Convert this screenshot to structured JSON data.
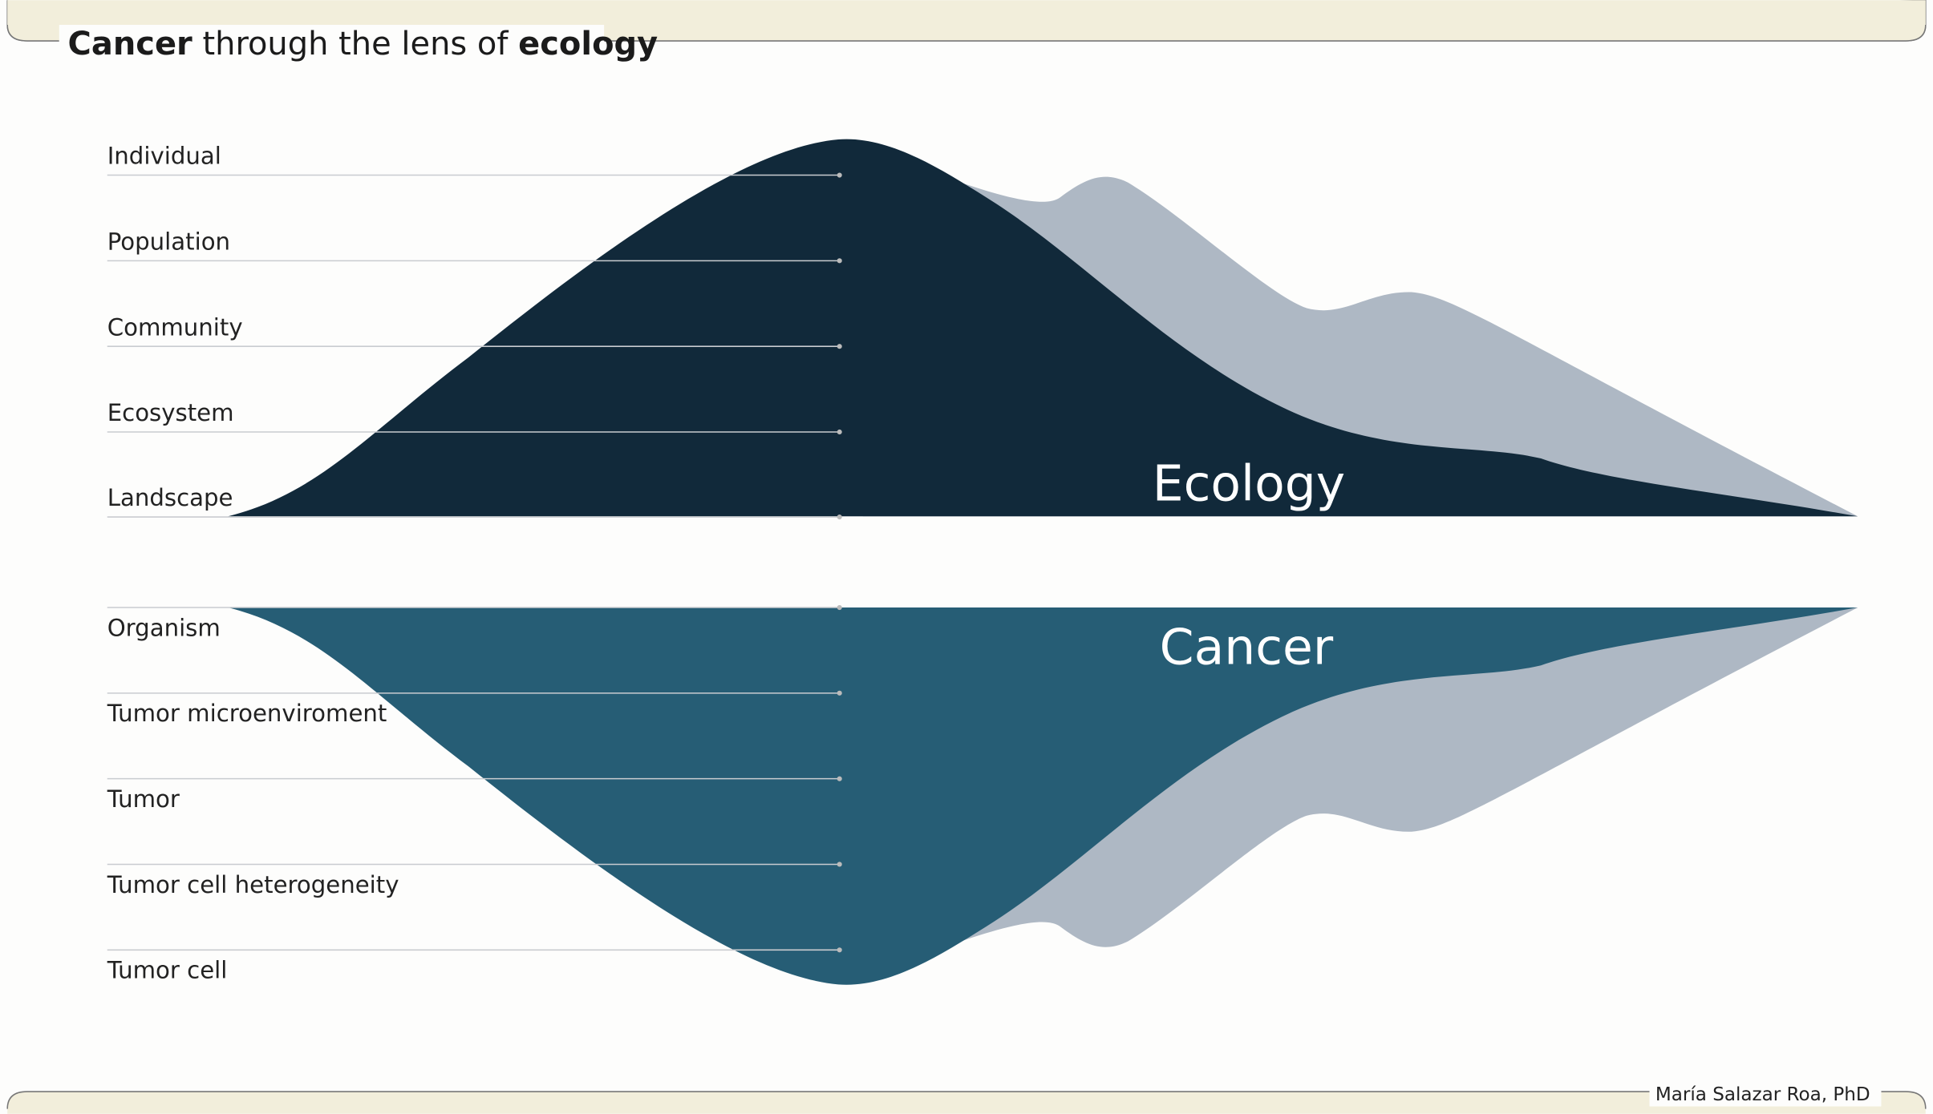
{
  "title": [
    "Cancer",
    "through the lens of",
    "ecology"
  ],
  "ecology": {
    "label": "Ecology",
    "levels": [
      "Individual",
      "Population",
      "Community",
      "Ecosystem",
      "Landscape"
    ]
  },
  "cancer": {
    "label": "Cancer",
    "levels": [
      "Organism",
      "Tumor microenviroment",
      "Tumor",
      "Tumor cell heterogeneity",
      "Tumor cell"
    ]
  },
  "author": "María Salazar Roa, PhD"
}
